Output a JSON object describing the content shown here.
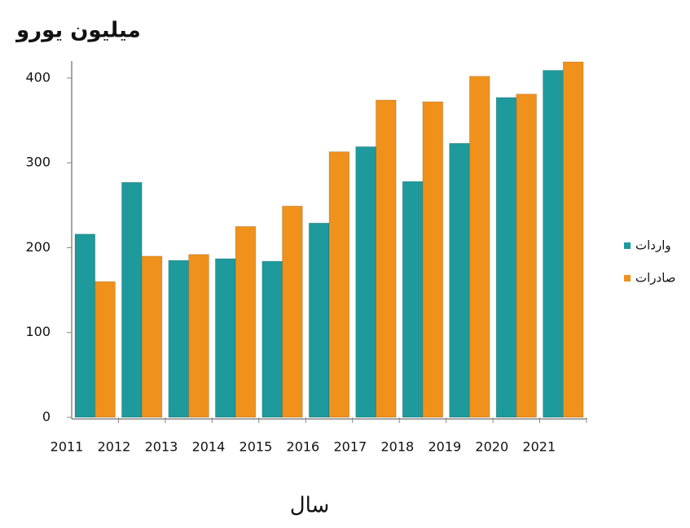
{
  "chart_data": {
    "type": "bar",
    "title": "میلیون یورو",
    "x_label": "سال",
    "categories": [
      "2011",
      "2012",
      "2013",
      "2014",
      "2015",
      "2016",
      "2017",
      "2018",
      "2019",
      "2020",
      "2021"
    ],
    "series": [
      {
        "name": "واردات",
        "color": "#1e9a9c",
        "values": [
          216,
          277,
          185,
          187,
          184,
          229,
          319,
          278,
          323,
          377,
          409
        ]
      },
      {
        "name": "صادرات",
        "color": "#f0911c",
        "values": [
          160,
          190,
          192,
          225,
          249,
          313,
          374,
          372,
          402,
          381,
          419
        ]
      }
    ],
    "ylim": [
      0,
      420
    ],
    "yticks": [
      0,
      100,
      200,
      300,
      400
    ],
    "legend": "right"
  }
}
